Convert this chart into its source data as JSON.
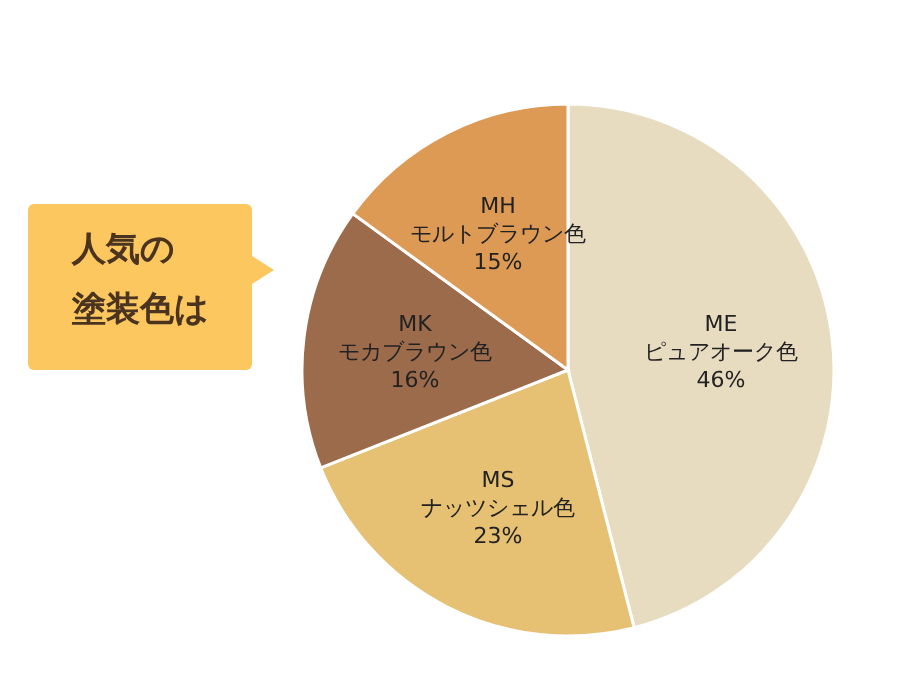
{
  "chart_data": {
    "type": "pie",
    "title": "人気の塗装色は",
    "categories": [
      "ME ピュアオーク色",
      "MS ナッツシェル色",
      "MK モカブラウン色",
      "MH モルトブラウン色"
    ],
    "values": [
      46,
      23,
      16,
      15
    ],
    "value_labels": [
      "46%",
      "23%",
      "16%",
      "15%"
    ],
    "colors": [
      "#e8dcc0",
      "#e6c173",
      "#9b6b4c",
      "#dd9a55"
    ]
  }
}
